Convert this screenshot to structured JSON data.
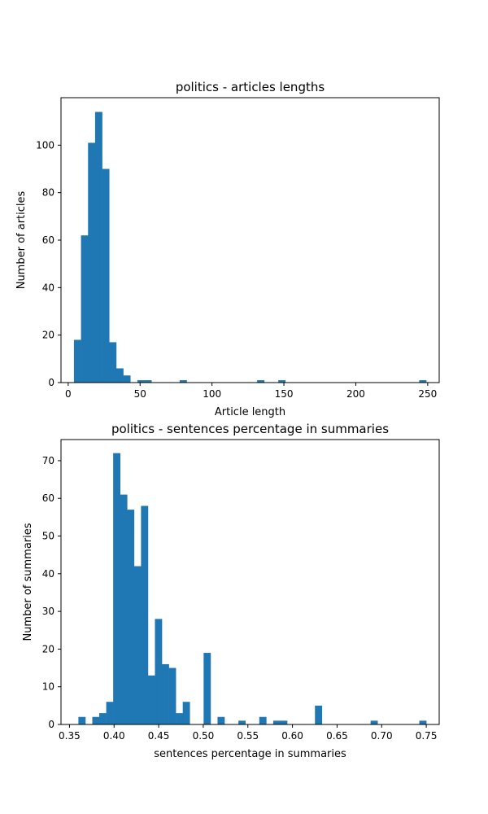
{
  "chart_data": [
    {
      "type": "bar",
      "title": "politics - articles lengths",
      "xlabel": "Article length",
      "ylabel": "Number of articles",
      "xlim": [
        -5,
        258
      ],
      "ylim": [
        0,
        120
      ],
      "xticks": [
        0,
        50,
        100,
        150,
        200,
        250
      ],
      "yticks": [
        0,
        20,
        40,
        60,
        80,
        100
      ],
      "bin_width": 4.9,
      "color": "#1f77b4",
      "grid": false,
      "bins": [
        {
          "x": 4.0,
          "count": 18
        },
        {
          "x": 8.9,
          "count": 62
        },
        {
          "x": 13.8,
          "count": 101
        },
        {
          "x": 18.7,
          "count": 114
        },
        {
          "x": 23.6,
          "count": 90
        },
        {
          "x": 28.5,
          "count": 17
        },
        {
          "x": 33.4,
          "count": 6
        },
        {
          "x": 38.3,
          "count": 3
        },
        {
          "x": 48.1,
          "count": 1
        },
        {
          "x": 53.0,
          "count": 1
        },
        {
          "x": 77.5,
          "count": 1
        },
        {
          "x": 131.4,
          "count": 1
        },
        {
          "x": 146.1,
          "count": 1
        },
        {
          "x": 244.1,
          "count": 1
        }
      ]
    },
    {
      "type": "bar",
      "title": "politics - sentences percentage in summaries",
      "xlabel": "sentences percentage in summaries",
      "ylabel": "Number of summaries",
      "xlim": [
        0.3405,
        0.7645
      ],
      "ylim": [
        0,
        75.6
      ],
      "xticks": [
        0.35,
        0.4,
        0.45,
        0.5,
        0.55,
        0.6,
        0.65,
        0.7,
        0.75
      ],
      "xtick_labels": [
        "0.35",
        "0.40",
        "0.45",
        "0.50",
        "0.55",
        "0.60",
        "0.65",
        "0.70",
        "0.75"
      ],
      "yticks": [
        0,
        10,
        20,
        30,
        40,
        50,
        60,
        70
      ],
      "bin_width": 0.0078,
      "color": "#1f77b4",
      "grid": false,
      "bins": [
        {
          "x": 0.36,
          "count": 2
        },
        {
          "x": 0.3756,
          "count": 2
        },
        {
          "x": 0.3834,
          "count": 3
        },
        {
          "x": 0.3912,
          "count": 6
        },
        {
          "x": 0.399,
          "count": 72
        },
        {
          "x": 0.4068,
          "count": 61
        },
        {
          "x": 0.4146,
          "count": 57
        },
        {
          "x": 0.4224,
          "count": 42
        },
        {
          "x": 0.4302,
          "count": 58
        },
        {
          "x": 0.438,
          "count": 13
        },
        {
          "x": 0.4458,
          "count": 28
        },
        {
          "x": 0.4536,
          "count": 16
        },
        {
          "x": 0.4614,
          "count": 15
        },
        {
          "x": 0.4692,
          "count": 3
        },
        {
          "x": 0.477,
          "count": 6
        },
        {
          "x": 0.5004,
          "count": 19
        },
        {
          "x": 0.516,
          "count": 2
        },
        {
          "x": 0.5394,
          "count": 1
        },
        {
          "x": 0.5628,
          "count": 2
        },
        {
          "x": 0.5784,
          "count": 1
        },
        {
          "x": 0.5862,
          "count": 1
        },
        {
          "x": 0.6252,
          "count": 5
        },
        {
          "x": 0.6876,
          "count": 1
        },
        {
          "x": 0.7422,
          "count": 1
        }
      ]
    }
  ]
}
